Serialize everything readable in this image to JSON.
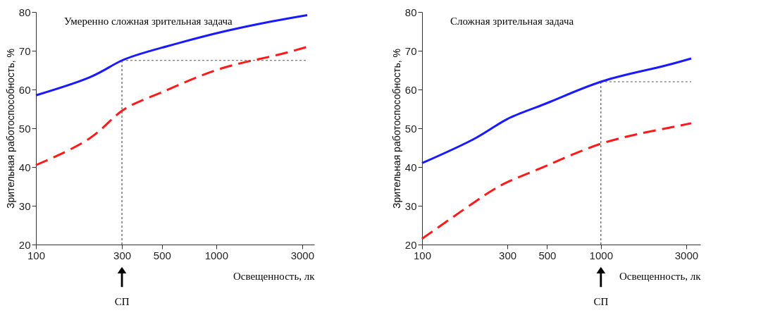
{
  "chart_data": [
    {
      "type": "line",
      "title": "Умеренно сложная зрительная задача",
      "xlabel": "Освещенность, лк",
      "ylabel": "Зрительная работоспособность, %",
      "x": [
        100,
        200,
        300,
        500,
        1000,
        2000,
        3200
      ],
      "log": "x",
      "xlim": [
        100,
        3500
      ],
      "xticks": [
        100,
        300,
        500,
        1000,
        3000
      ],
      "ylim": [
        20,
        80
      ],
      "yticks": [
        20,
        30,
        40,
        50,
        60,
        70,
        80
      ],
      "series": [
        {
          "color": "#1a1aff",
          "line_style": "solid",
          "values": [
            58.5,
            63.2,
            67.5,
            70.8,
            74.5,
            77.5,
            79.2
          ]
        },
        {
          "color": "#ff1a1a",
          "line_style": "dashed",
          "values": [
            40.5,
            47.5,
            54.5,
            59.3,
            65,
            68.5,
            71
          ]
        }
      ],
      "ref_lines": [
        {
          "axis": "x",
          "value": 300,
          "color": "#555555",
          "line_style": "dotted"
        },
        {
          "axis": "y",
          "value": 67.5,
          "color": "#555555",
          "line_style": "dotted"
        }
      ],
      "annotations": [
        "СП"
      ]
    },
    {
      "type": "line",
      "title": "Сложная зрительная задача",
      "xlabel": "Освещенность, лк",
      "ylabel": "Зрительная работоспособность, %",
      "x": [
        100,
        200,
        300,
        500,
        1000,
        2000,
        3200
      ],
      "log": "x",
      "xlim": [
        100,
        3600
      ],
      "xticks": [
        100,
        300,
        500,
        1000,
        3000
      ],
      "ylim": [
        20,
        80
      ],
      "yticks": [
        20,
        30,
        40,
        50,
        60,
        70,
        80
      ],
      "series": [
        {
          "color": "#1a1aff",
          "line_style": "solid",
          "values": [
            41,
            47.5,
            52.4,
            56.5,
            62,
            65.5,
            68
          ]
        },
        {
          "color": "#ff1a1a",
          "line_style": "dashed",
          "values": [
            21.5,
            31.2,
            36.1,
            40.4,
            46,
            49.4,
            51.3
          ]
        }
      ],
      "ref_lines": [
        {
          "axis": "x",
          "value": 1000,
          "color": "#555555",
          "line_style": "dotted"
        },
        {
          "axis": "y",
          "value": 62,
          "color": "#555555",
          "line_style": "dotted"
        }
      ],
      "annotations": [
        "СП"
      ]
    }
  ]
}
